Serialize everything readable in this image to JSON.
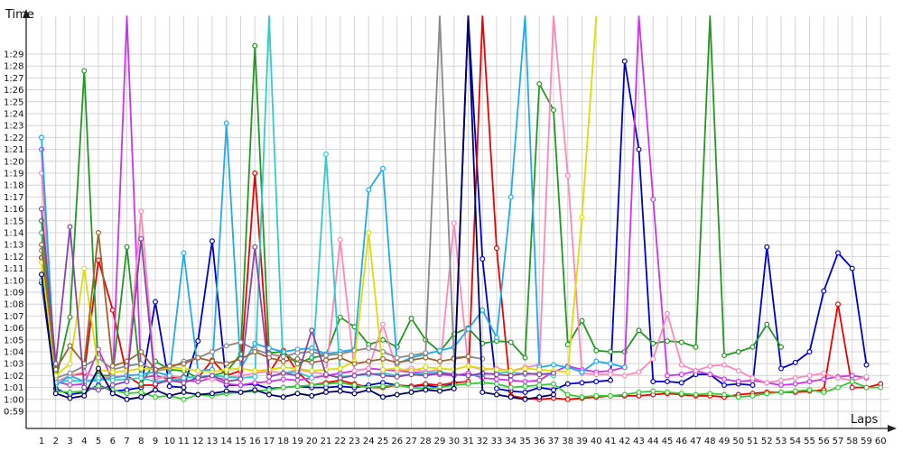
{
  "chart_data": {
    "type": "line",
    "xlabel": "Laps",
    "ylabel": "Time",
    "x": [
      1,
      2,
      3,
      4,
      5,
      6,
      7,
      8,
      9,
      10,
      11,
      12,
      13,
      14,
      15,
      16,
      17,
      18,
      19,
      20,
      21,
      22,
      23,
      24,
      25,
      26,
      27,
      28,
      29,
      30,
      31,
      32,
      33,
      34,
      35,
      36,
      37,
      38,
      39,
      40,
      41,
      42,
      43,
      44,
      45,
      46,
      47,
      48,
      49,
      50,
      51,
      52,
      53,
      54,
      55,
      56,
      57,
      58,
      59,
      60
    ],
    "xlim": [
      1,
      60
    ],
    "ylim": [
      59,
      91
    ],
    "y_ticks": [
      {
        "value": 59,
        "label": "0:59"
      },
      {
        "value": 60,
        "label": "1:00"
      },
      {
        "value": 61,
        "label": "1:01"
      },
      {
        "value": 62,
        "label": "1:02"
      },
      {
        "value": 63,
        "label": "1:03"
      },
      {
        "value": 64,
        "label": "1:04"
      },
      {
        "value": 65,
        "label": "1:05"
      },
      {
        "value": 66,
        "label": "1:06"
      },
      {
        "value": 67,
        "label": "1:07"
      },
      {
        "value": 68,
        "label": "1:08"
      },
      {
        "value": 69,
        "label": "1:09"
      },
      {
        "value": 70,
        "label": "1:10"
      },
      {
        "value": 71,
        "label": "1:11"
      },
      {
        "value": 72,
        "label": "1:12"
      },
      {
        "value": 73,
        "label": "1:13"
      },
      {
        "value": 74,
        "label": "1:14"
      },
      {
        "value": 75,
        "label": "1:15"
      },
      {
        "value": 76,
        "label": "1:16"
      },
      {
        "value": 77,
        "label": "1:17"
      },
      {
        "value": 78,
        "label": "1:18"
      },
      {
        "value": 79,
        "label": "1:19"
      },
      {
        "value": 80,
        "label": "1:20"
      },
      {
        "value": 81,
        "label": "1:21"
      },
      {
        "value": 82,
        "label": "1:22"
      },
      {
        "value": 83,
        "label": "1:23"
      },
      {
        "value": 84,
        "label": "1:24"
      },
      {
        "value": 85,
        "label": "1:25"
      },
      {
        "value": 86,
        "label": "1:26"
      },
      {
        "value": 87,
        "label": "1:27"
      },
      {
        "value": 88,
        "label": "1:28"
      },
      {
        "value": 89,
        "label": "1:29"
      }
    ],
    "grid": true,
    "series": [
      {
        "color": "#0000cc",
        "values": [
          69.8,
          60.9,
          60.4,
          60.6,
          61.2,
          60.7,
          60.8,
          61.0,
          68.2,
          61.1,
          61.0,
          64.9,
          73.3,
          61.2,
          61.2,
          61.3,
          60.9,
          61.0,
          61.1,
          61.0,
          61.0,
          61.1,
          61.0,
          61.2,
          61.4,
          61.2,
          61.1,
          61.2,
          61.0,
          61.3,
          120,
          71.8,
          60.9,
          60.7,
          60.6,
          61.0,
          60.8,
          61.3,
          61.4,
          61.5,
          61.6,
          88.4,
          81.0,
          61.5,
          61.5,
          61.4,
          62.1,
          62.1,
          61.2,
          61.3,
          61.2,
          72.8,
          62.6,
          63.1,
          64.0,
          69.1,
          72.3,
          71.0,
          62.9,
          null
        ]
      },
      {
        "color": "#ee0000",
        "values": [
          71.9,
          61.2,
          62.0,
          62.2,
          71.7,
          67.5,
          62.0,
          61.2,
          61.2,
          61.8,
          61.9,
          61.8,
          63.3,
          62.0,
          62.4,
          79.0,
          62.2,
          64.1,
          62.3,
          61.2,
          61.4,
          61.6,
          61.3,
          61.0,
          61.0,
          61.2,
          61.1,
          61.3,
          61.2,
          61.4,
          61.5,
          120,
          72.7,
          60.3,
          60.1,
          60.0,
          60.1,
          60.0,
          60.1,
          60.2,
          60.3,
          60.3,
          60.3,
          60.4,
          60.5,
          60.4,
          60.3,
          60.3,
          60.2,
          60.4,
          60.5,
          60.6,
          60.6,
          60.6,
          60.7,
          60.8,
          68.0,
          61.0,
          61.0,
          61.3
        ]
      },
      {
        "color": "#229922",
        "values": [
          75.0,
          61.6,
          66.9,
          87.6,
          62.0,
          62.0,
          72.8,
          61.3,
          63.2,
          62.5,
          62.4,
          61.8,
          62.0,
          62.3,
          63.8,
          89.7,
          63.9,
          64.0,
          63.0,
          63.5,
          63.7,
          66.9,
          66.1,
          64.6,
          65.0,
          64.4,
          66.8,
          65.0,
          64.0,
          65.5,
          66.0,
          64.7,
          64.9,
          64.8,
          63.5,
          86.5,
          84.3,
          64.6,
          66.6,
          64.1,
          64.0,
          64.0,
          65.8,
          64.7,
          64.9,
          64.8,
          64.4,
          120,
          63.7,
          64.0,
          64.4,
          66.3,
          64.4,
          null,
          null,
          null,
          null,
          null,
          null,
          null
        ]
      },
      {
        "color": "#cc33ee",
        "values": [
          81.0,
          61.5,
          61.2,
          61.3,
          64.2,
          61.6,
          120,
          61.8,
          62.0,
          61.7,
          61.6,
          61.5,
          61.8,
          61.3,
          61.2,
          61.4,
          61.5,
          61.7,
          61.6,
          61.8,
          62.0,
          62.2,
          62.4,
          62.6,
          62.5,
          62.4,
          62.3,
          62.2,
          62.1,
          62.0,
          62.2,
          61.8,
          61.7,
          61.6,
          61.5,
          61.6,
          62.3,
          62.8,
          62.5,
          62.3,
          62.4,
          62.7,
          120,
          76.8,
          62.0,
          62.1,
          62.4,
          62.1,
          61.7,
          61.5,
          61.6,
          61.4,
          61.2,
          61.3,
          61.5,
          61.7,
          61.9,
          62.0,
          61.8,
          null
        ]
      },
      {
        "color": "#ff88bb",
        "values": [
          79.0,
          61.5,
          62.0,
          62.3,
          61.8,
          61.9,
          62.0,
          75.8,
          61.7,
          62.0,
          61.8,
          61.9,
          61.7,
          61.8,
          62.0,
          62.2,
          62.4,
          62.2,
          62.5,
          62.3,
          62.1,
          73.4,
          62.4,
          62.6,
          66.3,
          62.4,
          62.6,
          62.3,
          62.5,
          74.8,
          62.8,
          62.5,
          62.6,
          62.4,
          62.7,
          62.9,
          120,
          78.8,
          62.2,
          62.1,
          62.1,
          62.0,
          62.3,
          63.4,
          67.2,
          62.9,
          62.4,
          62.8,
          62.9,
          62.4,
          61.8,
          61.4,
          61.6,
          61.8,
          62.0,
          62.2,
          61.8,
          61.6,
          61.9,
          null
        ]
      },
      {
        "color": "#22aaee",
        "values": [
          82.0,
          61.2,
          62.0,
          61.5,
          61.6,
          61.8,
          62.0,
          62.1,
          62.3,
          62.0,
          72.3,
          62.4,
          62.5,
          83.2,
          62.6,
          64.7,
          64.3,
          64.0,
          64.2,
          64.3,
          63.8,
          64.0,
          64.2,
          77.6,
          79.4,
          63.0,
          63.5,
          63.8,
          64.1,
          64.4,
          65.9,
          67.5,
          65.2,
          77.0,
          120,
          62.7,
          62.9,
          62.7,
          62.3,
          63.2,
          63.0,
          62.7,
          null,
          null,
          null,
          null,
          null,
          null,
          null,
          null,
          null,
          null,
          null,
          null,
          null,
          null,
          null,
          null,
          null,
          null
        ]
      },
      {
        "color": "#33cc33",
        "values": [
          74.0,
          60.7,
          60.6,
          60.7,
          61.1,
          60.8,
          60.5,
          60.6,
          60.2,
          60.3,
          60.0,
          60.4,
          60.3,
          60.5,
          60.6,
          60.7,
          60.8,
          61.0,
          61.1,
          61.2,
          61.3,
          61.4,
          61.2,
          61.0,
          61.1,
          61.2,
          61.0,
          60.9,
          61.0,
          61.2,
          61.3,
          61.4,
          61.3,
          61.0,
          61.1,
          61.2,
          61.3,
          60.4,
          60.2,
          60.3,
          60.3,
          60.4,
          60.6,
          60.7,
          60.6,
          60.5,
          60.4,
          60.5,
          60.4,
          60.2,
          60.3,
          60.5,
          60.6,
          60.7,
          60.8,
          60.6,
          61.0,
          61.5,
          61.0,
          61.0
        ]
      },
      {
        "color": "#33cccc",
        "values": [
          70.0,
          61.4,
          61.6,
          61.5,
          61.8,
          61.6,
          61.7,
          61.8,
          61.5,
          61.6,
          61.8,
          61.9,
          62.0,
          61.9,
          61.8,
          61.9,
          120,
          62.2,
          62.3,
          61.8,
          80.6,
          61.9,
          62.0,
          62.1,
          62.2,
          62.0,
          62.1,
          62.2,
          62.3,
          62.1,
          62.0,
          62.1,
          62.2,
          62.3,
          62.1,
          62.2,
          62.0,
          null,
          null,
          null,
          null,
          null,
          null,
          null,
          null,
          null,
          null,
          null,
          null,
          null,
          null,
          null,
          null,
          null,
          null,
          null,
          null,
          null,
          null,
          null
        ]
      },
      {
        "color": "#888888",
        "values": [
          72.5,
          61.8,
          62.2,
          62.8,
          63.5,
          62.5,
          62.8,
          63.0,
          62.4,
          62.6,
          63.2,
          63.5,
          64.0,
          64.5,
          64.8,
          64.2,
          63.8,
          63.6,
          63.9,
          64.0,
          63.7,
          63.8,
          64.1,
          64.3,
          64.0,
          63.5,
          63.7,
          63.9,
          120,
          63.5,
          63.6,
          63.4,
          null,
          null,
          null,
          null,
          null,
          null,
          null,
          null,
          null,
          null,
          null,
          null,
          null,
          null,
          null,
          null,
          null,
          null,
          null,
          null,
          null,
          null,
          null,
          null,
          null,
          null,
          null,
          null
        ]
      },
      {
        "color": "#dddd00",
        "values": [
          71.5,
          62.0,
          63.0,
          71.0,
          62.5,
          62.3,
          62.4,
          62.6,
          62.5,
          62.7,
          62.6,
          62.4,
          62.3,
          62.5,
          62.6,
          62.4,
          62.5,
          62.7,
          62.6,
          62.4,
          62.5,
          62.6,
          63.2,
          74.0,
          62.5,
          62.6,
          62.4,
          62.7,
          62.6,
          62.5,
          62.8,
          62.6,
          62.5,
          62.4,
          62.6,
          62.5,
          62.4,
          62.3,
          75.3,
          120,
          null,
          null,
          null,
          null,
          null,
          null,
          null,
          null,
          null,
          null,
          null,
          null,
          null,
          null,
          null,
          null,
          null,
          null,
          null,
          null
        ]
      },
      {
        "color": "#996633",
        "values": [
          73.0,
          62.5,
          64.5,
          63.0,
          74.0,
          62.8,
          63.2,
          64.0,
          62.5,
          62.8,
          63.0,
          63.5,
          63.2,
          63.0,
          63.4,
          64.0,
          63.5,
          63.2,
          63.4,
          63.1,
          63.3,
          63.5,
          63.0,
          63.2,
          63.4,
          63.1,
          63.3,
          63.5,
          63.2,
          63.4,
          63.6,
          null,
          null,
          null,
          null,
          null,
          null,
          null,
          null,
          null,
          null,
          null,
          null,
          null,
          null,
          null,
          null,
          null,
          null,
          null,
          null,
          null,
          null,
          null,
          null,
          null,
          null,
          null,
          null,
          null
        ]
      },
      {
        "color": "#8844aa",
        "values": [
          76.0,
          63.0,
          74.5,
          61.0,
          60.8,
          61.2,
          61.5,
          73.5,
          61.3,
          61.6,
          61.4,
          61.8,
          62.0,
          61.5,
          61.7,
          72.8,
          61.9,
          62.2,
          62.0,
          65.8,
          62.1,
          61.8,
          62.0,
          62.2,
          62.0,
          61.9,
          62.1,
          62.0,
          62.2,
          62.1,
          62.0,
          62.2,
          62.1,
          62.0,
          62.2,
          62.1,
          62.2,
          null,
          null,
          null,
          null,
          null,
          null,
          null,
          null,
          null,
          null,
          null,
          null,
          null,
          null,
          null,
          null,
          null,
          null,
          null,
          null,
          null,
          null,
          null
        ]
      },
      {
        "color": "#000066",
        "values": [
          70.5,
          60.5,
          60.1,
          60.3,
          62.6,
          60.5,
          60.0,
          60.2,
          60.8,
          60.3,
          60.6,
          60.4,
          60.5,
          60.7,
          60.6,
          60.8,
          60.4,
          60.2,
          60.5,
          60.3,
          60.6,
          60.7,
          60.5,
          60.8,
          60.2,
          60.4,
          60.6,
          60.8,
          60.7,
          60.9,
          120,
          60.6,
          60.4,
          60.2,
          60.0,
          60.2,
          60.4,
          null,
          null,
          null,
          null,
          null,
          null,
          null,
          null,
          null,
          null,
          null,
          null,
          null,
          null,
          null,
          null,
          null,
          null,
          null,
          null,
          null,
          null,
          null
        ]
      }
    ]
  }
}
